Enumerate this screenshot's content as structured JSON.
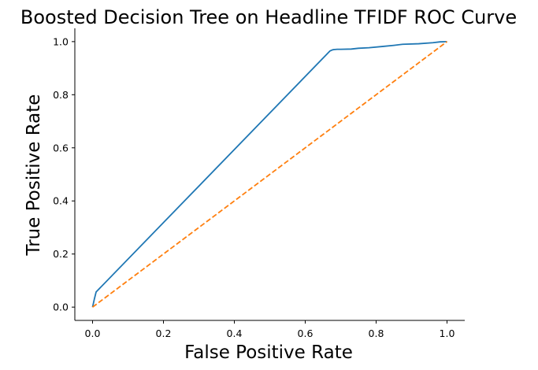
{
  "chart_data": {
    "type": "line",
    "title": "Boosted Decision Tree on Headline TFIDF ROC Curve",
    "xlabel": "False Positive Rate",
    "ylabel": "True Positive Rate",
    "xlim": [
      -0.05,
      1.05
    ],
    "ylim": [
      -0.05,
      1.05
    ],
    "xticks": [
      0.0,
      0.2,
      0.4,
      0.6,
      0.8,
      1.0
    ],
    "yticks": [
      0.0,
      0.2,
      0.4,
      0.6,
      0.8,
      1.0
    ],
    "xtick_labels": [
      "0.0",
      "0.2",
      "0.4",
      "0.6",
      "0.8",
      "1.0"
    ],
    "ytick_labels": [
      "0.0",
      "0.2",
      "0.4",
      "0.6",
      "0.8",
      "1.0"
    ],
    "grid": false,
    "series": [
      {
        "color": "#1f77b4",
        "style": "solid",
        "x": [
          0.0,
          0.005,
          0.01,
          0.67,
          0.675,
          0.68,
          0.69,
          0.7,
          0.73,
          0.75,
          0.78,
          0.82,
          0.85,
          0.875,
          0.92,
          0.96,
          0.98,
          1.0
        ],
        "y": [
          0.0,
          0.03,
          0.057,
          0.965,
          0.968,
          0.97,
          0.971,
          0.971,
          0.972,
          0.975,
          0.977,
          0.982,
          0.986,
          0.99,
          0.992,
          0.996,
          0.999,
          1.0
        ]
      },
      {
        "color": "#ff7f0e",
        "style": "dashed",
        "x": [
          0.0,
          1.0
        ],
        "y": [
          0.0,
          1.0
        ]
      }
    ]
  }
}
